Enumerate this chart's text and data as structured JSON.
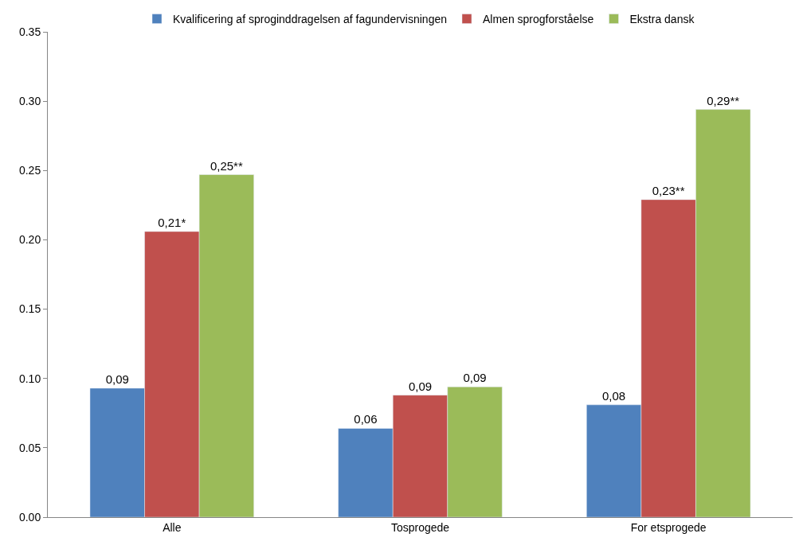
{
  "chart_data": {
    "type": "bar",
    "categories": [
      "Alle",
      "Tosprogede",
      "For etsprogede"
    ],
    "series": [
      {
        "name": "Kvalificering af sproginddragelsen af fagundervisningen",
        "color": "#4f81bd",
        "values": [
          0.093,
          0.064,
          0.081
        ],
        "value_labels": [
          "0,09",
          "0,06",
          "0,08"
        ]
      },
      {
        "name": "Almen sprogforståelse",
        "color": "#c0504d",
        "values": [
          0.206,
          0.088,
          0.229
        ],
        "value_labels": [
          "0,21*",
          "0,09",
          "0,23**"
        ]
      },
      {
        "name": "Ekstra dansk",
        "color": "#9bbb59",
        "values": [
          0.247,
          0.094,
          0.294
        ],
        "value_labels": [
          "0,25**",
          "0,09",
          "0,29**"
        ]
      }
    ],
    "ylim": [
      0,
      0.35
    ],
    "yticks": [
      {
        "value": 0,
        "label": "0.00"
      },
      {
        "value": 0.05,
        "label": "0.05"
      },
      {
        "value": 0.1,
        "label": "0.10"
      },
      {
        "value": 0.15,
        "label": "0.15"
      },
      {
        "value": 0.2,
        "label": "0.20"
      },
      {
        "value": 0.25,
        "label": "0.25"
      },
      {
        "value": 0.3,
        "label": "0.30"
      },
      {
        "value": 0.35,
        "label": "0.35"
      }
    ],
    "legend": "top"
  }
}
